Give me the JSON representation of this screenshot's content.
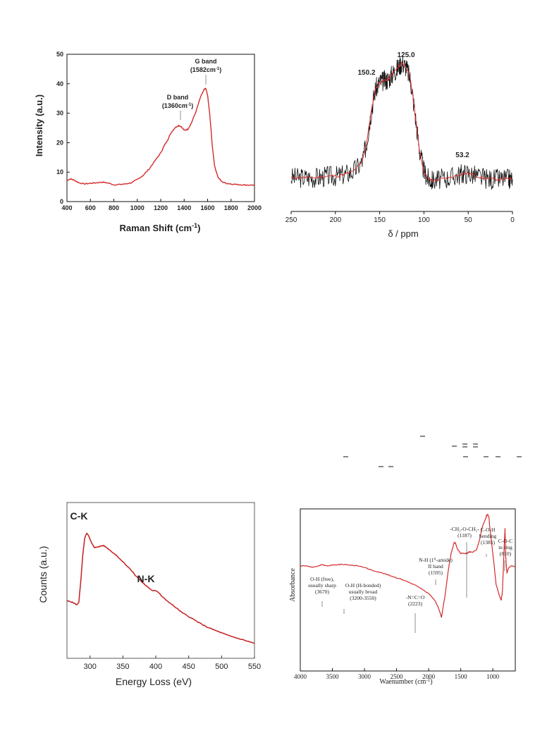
{
  "charts": {
    "raman": {
      "xlabel": "Raman Shift (cm",
      "xlabel_sup": "-1",
      "xlabel_end": ")",
      "ylabel": "Intensity (a.u.)",
      "g_label": "G band",
      "g_value": "(1582cm",
      "g_sup": "-1",
      "g_end": ")",
      "d_label": "D band",
      "d_value": "(1360cm",
      "d_sup": "-1",
      "d_end": ")"
    },
    "nmr": {
      "xlabel": "δ / ppm",
      "peak_125": "125.0",
      "peak_150": "150.2",
      "peak_53": "53.2"
    },
    "eels": {
      "xlabel": "Energy Loss (eV)",
      "ylabel": "Counts (a.u.)",
      "ck_label": "C-K",
      "nk_label": "N-K"
    },
    "ftir": {
      "xlabel": "Waenumber (cm",
      "xlabel_sup": "-1",
      "xlabel_end": ")",
      "ylabel": "Absorbance",
      "ann_oh_free": [
        "O-H (free),",
        "usually sharp",
        "(3670)"
      ],
      "ann_oh_bonded": [
        "O-H (H-bonded)",
        "usually broad",
        "(3200-3550)"
      ],
      "ann_nco": [
        "-N=C=O",
        "(2223)"
      ],
      "ann_nh": [
        "N-H (1⁰-amide)",
        "II band",
        "(1595)"
      ],
      "ann_ch2": [
        "-CH₂-O-CH₂-",
        "(1187)"
      ],
      "ann_coh": [
        "C-O-H",
        "bending",
        "(1385)"
      ],
      "ann_coc": [
        "C-O-C",
        "in ring",
        "(810)"
      ]
    }
  },
  "chart_data": [
    {
      "type": "line",
      "xlabel": "Raman Shift (cm-1)",
      "ylabel": "Intensity (a.u.)",
      "xlim": [
        400,
        2000
      ],
      "ylim": [
        0,
        50
      ],
      "xticks": [
        400,
        600,
        800,
        1000,
        1200,
        1400,
        1600,
        1800,
        2000
      ],
      "yticks": [
        0,
        10,
        20,
        30,
        40,
        50
      ],
      "color": "#d42a2a",
      "series": [
        {
          "x": [
            400,
            430,
            460,
            500,
            550,
            600,
            650,
            700,
            750,
            800,
            850,
            900,
            950,
            1000,
            1050,
            1100,
            1150,
            1200,
            1230,
            1260,
            1290,
            1320,
            1350,
            1370,
            1400,
            1430,
            1460,
            1500,
            1540,
            1570,
            1585,
            1600,
            1620,
            1640,
            1660,
            1690,
            1720,
            1760,
            1800,
            1850,
            1900,
            1950,
            2000
          ],
          "y": [
            7.2,
            7.7,
            7.3,
            6.4,
            6.0,
            6.2,
            6.4,
            6.6,
            6.3,
            5.7,
            5.8,
            6.0,
            6.4,
            7.5,
            8.9,
            11,
            13.8,
            16.5,
            19,
            21,
            23.5,
            25,
            25.8,
            25.6,
            24.2,
            24.5,
            26.5,
            30.5,
            35.5,
            38,
            38.4,
            36,
            29,
            19,
            12,
            8.2,
            6.8,
            6.2,
            6.0,
            5.8,
            5.7,
            5.6,
            5.6
          ]
        }
      ]
    },
    {
      "type": "line",
      "xlabel": "δ / ppm",
      "xlim": [
        250,
        0
      ],
      "xticks": [
        250,
        200,
        150,
        100,
        50,
        0
      ],
      "annotations": [
        "125.0",
        "150.2",
        "53.2"
      ],
      "series": [
        {
          "name": "spectrum",
          "color": "#111111",
          "x": [
            250,
            240,
            230,
            220,
            210,
            200,
            190,
            180,
            170,
            165,
            160,
            155,
            150,
            145,
            140,
            135,
            130,
            125,
            120,
            115,
            110,
            105,
            100,
            95,
            90,
            80,
            70,
            60,
            53,
            45,
            35,
            25,
            15,
            5,
            0
          ],
          "y": [
            0.2,
            0.2,
            0.2,
            0.2,
            0.21,
            0.21,
            0.22,
            0.24,
            0.3,
            0.42,
            0.62,
            0.78,
            0.83,
            0.84,
            0.85,
            0.89,
            0.92,
            0.96,
            0.93,
            0.84,
            0.62,
            0.38,
            0.24,
            0.19,
            0.18,
            0.19,
            0.2,
            0.22,
            0.23,
            0.22,
            0.2,
            0.19,
            0.19,
            0.19,
            0.19
          ]
        },
        {
          "name": "fit",
          "color": "#e23030",
          "x": [
            250,
            240,
            230,
            220,
            210,
            200,
            190,
            180,
            170,
            165,
            160,
            155,
            150,
            145,
            140,
            135,
            130,
            125,
            120,
            115,
            110,
            105,
            100,
            95,
            90,
            80,
            70,
            60,
            53,
            45,
            35,
            25,
            15,
            5,
            0
          ],
          "y": [
            0.2,
            0.2,
            0.2,
            0.2,
            0.21,
            0.21,
            0.22,
            0.24,
            0.3,
            0.42,
            0.62,
            0.78,
            0.83,
            0.84,
            0.85,
            0.89,
            0.92,
            0.96,
            0.93,
            0.84,
            0.62,
            0.38,
            0.24,
            0.19,
            0.18,
            0.19,
            0.2,
            0.22,
            0.23,
            0.22,
            0.2,
            0.19,
            0.19,
            0.19,
            0.19
          ]
        }
      ]
    },
    {
      "type": "line",
      "xlabel": "Energy Loss (eV)",
      "ylabel": "Counts (a.u.)",
      "xlim": [
        265,
        550
      ],
      "xticks": [
        300,
        350,
        400,
        450,
        500,
        550
      ],
      "color": "#c41e1e",
      "series": [
        {
          "x": [
            265,
            270,
            275,
            280,
            283,
            286,
            289,
            292,
            295,
            298,
            301,
            304,
            307,
            310,
            313,
            316,
            320,
            325,
            330,
            340,
            350,
            360,
            370,
            380,
            390,
            395,
            400,
            405,
            410,
            420,
            430,
            440,
            450,
            460,
            470,
            480,
            490,
            500,
            510,
            520,
            530,
            540,
            550
          ],
          "y": [
            0.37,
            0.365,
            0.355,
            0.34,
            0.36,
            0.52,
            0.72,
            0.85,
            0.89,
            0.87,
            0.83,
            0.8,
            0.78,
            0.78,
            0.785,
            0.79,
            0.795,
            0.78,
            0.76,
            0.72,
            0.67,
            0.62,
            0.56,
            0.51,
            0.465,
            0.45,
            0.45,
            0.43,
            0.4,
            0.36,
            0.32,
            0.28,
            0.25,
            0.22,
            0.19,
            0.165,
            0.145,
            0.125,
            0.105,
            0.09,
            0.075,
            0.06,
            0.045
          ]
        }
      ]
    },
    {
      "type": "line",
      "xlabel": "Waenumber (cm-1)",
      "ylabel": "Absorbance",
      "xlim": [
        4000,
        650
      ],
      "xticks": [
        4000,
        3500,
        3000,
        2500,
        2000,
        1500,
        1000
      ],
      "color": "#d42a2a",
      "series": [
        {
          "x": [
            4000,
            3900,
            3800,
            3700,
            3670,
            3600,
            3500,
            3400,
            3300,
            3200,
            3100,
            3000,
            2900,
            2800,
            2700,
            2600,
            2500,
            2400,
            2300,
            2200,
            2100,
            2000,
            1900,
            1850,
            1800,
            1750,
            1700,
            1650,
            1620,
            1600,
            1580,
            1550,
            1500,
            1450,
            1400,
            1380,
            1350,
            1300,
            1250,
            1200,
            1180,
            1150,
            1120,
            1100,
            1080,
            1060,
            1050,
            1000,
            950,
            900,
            870,
            850,
            820,
            810,
            800,
            780,
            750,
            700,
            650
          ],
          "y": [
            0.63,
            0.63,
            0.62,
            0.63,
            0.64,
            0.63,
            0.635,
            0.64,
            0.64,
            0.635,
            0.63,
            0.62,
            0.6,
            0.59,
            0.575,
            0.56,
            0.545,
            0.53,
            0.51,
            0.49,
            0.46,
            0.43,
            0.38,
            0.33,
            0.26,
            0.4,
            0.58,
            0.72,
            0.77,
            0.8,
            0.79,
            0.75,
            0.72,
            0.72,
            0.72,
            0.73,
            0.73,
            0.73,
            0.75,
            0.83,
            0.88,
            0.93,
            0.96,
            0.99,
            1.0,
            0.98,
            0.92,
            0.72,
            0.5,
            0.42,
            0.38,
            0.45,
            0.8,
            0.9,
            0.7,
            0.58,
            0.62,
            0.63,
            0.62
          ]
        }
      ]
    }
  ]
}
